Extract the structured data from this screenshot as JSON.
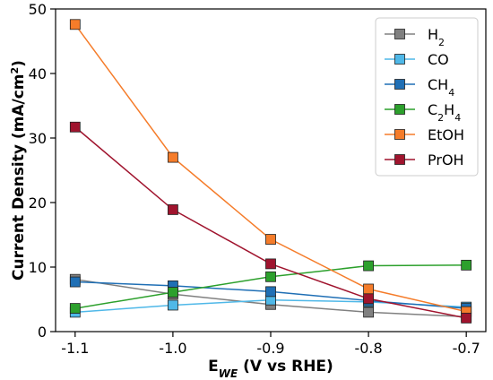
{
  "chart_data": {
    "type": "line",
    "x": [
      -1.1,
      -1.0,
      -0.9,
      -0.8,
      -0.7
    ],
    "xlim": [
      -1.12,
      -0.68
    ],
    "ylim": [
      0,
      50
    ],
    "xticks": [
      "-1.1",
      "-1.0",
      "-0.9",
      "-0.8",
      "-0.7"
    ],
    "yticks": [
      "0",
      "10",
      "20",
      "30",
      "40",
      "50"
    ],
    "ylabel_main": "Current Density (mA/cm",
    "ylabel_sup": "2",
    "ylabel_end": ")",
    "xlabel_main": "E",
    "xlabel_sub": "WE",
    "xlabel_end": " (V vs RHE)",
    "grid": false,
    "legend_position": "top-right",
    "series": [
      {
        "key": "h2",
        "name": "H",
        "name_sub": "2",
        "name_mid": "",
        "name_sub2": "",
        "color": "#808080",
        "values": [
          8.1,
          5.8,
          4.2,
          3.0,
          2.3
        ]
      },
      {
        "key": "co",
        "name": "CO",
        "name_sub": "",
        "name_mid": "",
        "name_sub2": "",
        "color": "#4fb8e8",
        "values": [
          3.0,
          4.1,
          4.9,
          4.6,
          3.8
        ]
      },
      {
        "key": "ch4",
        "name": "CH",
        "name_sub": "4",
        "name_mid": "",
        "name_sub2": "",
        "color": "#1f6fb5",
        "values": [
          7.7,
          7.1,
          6.2,
          4.8,
          3.6
        ]
      },
      {
        "key": "c2h4",
        "name": "C",
        "name_sub": "2",
        "name_mid": "H",
        "name_sub2": "4",
        "color": "#2ca02c",
        "values": [
          3.6,
          6.1,
          8.5,
          10.2,
          10.3
        ]
      },
      {
        "key": "etoh",
        "name": "EtOH",
        "name_sub": "",
        "name_mid": "",
        "name_sub2": "",
        "color": "#f57c2a",
        "values": [
          47.6,
          27.0,
          14.3,
          6.6,
          3.1
        ]
      },
      {
        "key": "proh",
        "name": "PrOH",
        "name_sub": "",
        "name_mid": "",
        "name_sub2": "",
        "color": "#a0142e",
        "values": [
          31.7,
          18.9,
          10.5,
          5.1,
          2.1
        ]
      }
    ]
  }
}
